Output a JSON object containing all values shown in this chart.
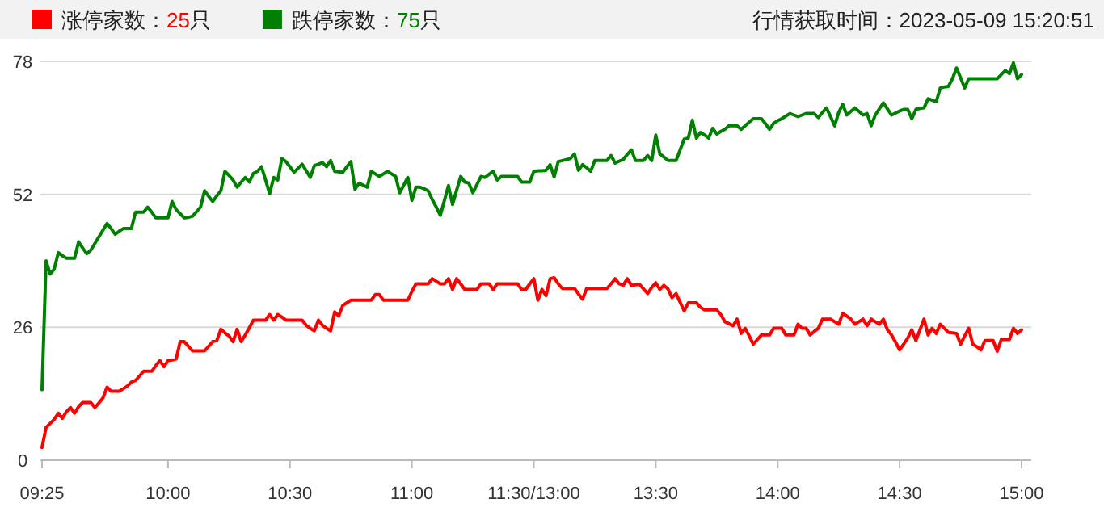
{
  "chart_data": {
    "type": "line",
    "legend": "top left",
    "grid": "y",
    "annotations": [
      "行情获取时间：2023-05-09 15:20:51"
    ],
    "ylim": [
      0,
      78
    ],
    "yticks": [
      0,
      26,
      52,
      78
    ],
    "categories": [
      "09:25",
      null,
      null,
      null,
      null,
      null,
      null,
      null,
      null,
      null,
      null,
      null,
      null,
      null,
      null,
      null,
      null,
      null,
      null,
      null,
      null,
      null,
      null,
      null,
      null,
      null,
      null,
      null,
      null,
      null,
      null,
      "10:00",
      null,
      null,
      null,
      null,
      null,
      null,
      null,
      null,
      null,
      null,
      null,
      null,
      null,
      null,
      null,
      null,
      null,
      null,
      null,
      null,
      null,
      null,
      null,
      null,
      null,
      null,
      null,
      null,
      null,
      "10:30",
      null,
      null,
      null,
      null,
      null,
      null,
      null,
      null,
      null,
      null,
      null,
      null,
      null,
      null,
      null,
      null,
      null,
      null,
      null,
      null,
      null,
      null,
      null,
      null,
      null,
      null,
      null,
      null,
      null,
      "11:00",
      null,
      null,
      null,
      null,
      null,
      null,
      null,
      null,
      null,
      null,
      null,
      null,
      null,
      null,
      null,
      null,
      null,
      null,
      null,
      null,
      null,
      null,
      null,
      null,
      null,
      null,
      null,
      null,
      null,
      "11:30/13:00",
      null,
      null,
      null,
      null,
      null,
      null,
      null,
      null,
      null,
      null,
      null,
      null,
      null,
      null,
      null,
      null,
      null,
      null,
      null,
      null,
      null,
      null,
      null,
      null,
      null,
      null,
      null,
      null,
      null,
      "13:30",
      null,
      null,
      null,
      null,
      null,
      null,
      null,
      null,
      null,
      null,
      null,
      null,
      null,
      null,
      null,
      null,
      null,
      null,
      null,
      null,
      null,
      null,
      null,
      null,
      null,
      null,
      null,
      null,
      null,
      "14:00",
      null,
      null,
      null,
      null,
      null,
      null,
      null,
      null,
      null,
      null,
      null,
      null,
      null,
      null,
      null,
      null,
      null,
      null,
      null,
      null,
      null,
      null,
      null,
      null,
      null,
      null,
      null,
      null,
      null,
      "14:30",
      null,
      null,
      null,
      null,
      null,
      null,
      null,
      null,
      null,
      null,
      null,
      null,
      null,
      null,
      null,
      null,
      null,
      null,
      null,
      null,
      null,
      null,
      null,
      null,
      null,
      null,
      null,
      null,
      null,
      "15:00"
    ],
    "series": [
      {
        "name": "涨停家数：25只",
        "color": "#ff0000",
        "values": [
          2.5,
          6.4,
          7.2,
          8,
          9.2,
          8.2,
          9.5,
          10.3,
          9.2,
          10.5,
          11.3,
          11.3,
          11.3,
          10.3,
          11.2,
          12.2,
          14.3,
          13.5,
          13.5,
          13.5,
          14,
          14.5,
          15.3,
          15.6,
          16.5,
          17.4,
          17.4,
          17.4,
          18.5,
          19.5,
          18.3,
          19.5,
          19.6,
          19.8,
          23.2,
          23.2,
          22.3,
          21.4,
          21.4,
          21.4,
          21.4,
          22.3,
          23.2,
          23.4,
          25.6,
          24.9,
          24.3,
          23.2,
          25.6,
          23.2,
          24.5,
          25.9,
          27.4,
          27.4,
          27.4,
          27.4,
          28.5,
          27.4,
          28.5,
          28,
          27.4,
          27.4,
          27.4,
          27.4,
          27.4,
          26.4,
          25.8,
          25.3,
          27.4,
          26.4,
          25.8,
          25.3,
          29,
          28.2,
          30.3,
          30.8,
          31.3,
          31.3,
          31.3,
          31.3,
          31.3,
          31.3,
          32.4,
          32.4,
          31.3,
          31.3,
          31.3,
          31.3,
          31.3,
          31.3,
          31.3,
          33,
          34.5,
          34.5,
          34.5,
          34.5,
          35.5,
          35,
          34.5,
          34.5,
          35.5,
          33.4,
          35.5,
          34.5,
          33.4,
          33.4,
          33.4,
          33.4,
          34.5,
          34.5,
          34.5,
          33.4,
          34.5,
          34.5,
          34.5,
          34.5,
          34.5,
          34.5,
          33.4,
          33.4,
          34.5,
          35.5,
          31.3,
          33.4,
          32.2,
          35.5,
          35.7,
          34.5,
          33.6,
          33.6,
          33.6,
          33.6,
          32.5,
          31.5,
          33.6,
          33.6,
          33.6,
          33.6,
          33.6,
          33.6,
          34.5,
          35.5,
          34.5,
          34.2,
          35.5,
          34.2,
          34.3,
          34.4,
          33.5,
          32.6,
          33.8,
          34.7,
          33.4,
          34.2,
          33.5,
          31.8,
          32.6,
          30.9,
          29.2,
          30.8,
          30.8,
          30.8,
          29.9,
          29.4,
          29.4,
          29.4,
          29.4,
          28.5,
          27.1,
          26.7,
          26.3,
          27.6,
          24.8,
          25.8,
          24.3,
          22.7,
          23.6,
          24.5,
          24.5,
          24.5,
          25.8,
          25.8,
          25.8,
          24.5,
          24.5,
          24.5,
          26.6,
          25.8,
          25.8,
          24.5,
          25.2,
          25.8,
          27.6,
          27.6,
          27.6,
          27.1,
          26.6,
          28.7,
          28.2,
          27.6,
          26.6,
          27.1,
          27.6,
          26.3,
          27.6,
          27.1,
          26.6,
          27.6,
          25.5,
          24.5,
          23.1,
          21.6,
          22.7,
          23.9,
          25.5,
          23.4,
          25.5,
          27.6,
          24.5,
          25.8,
          24.8,
          26.6,
          25.8,
          25,
          24.9,
          24.8,
          22.7,
          24.3,
          25.8,
          22.7,
          22.2,
          21.6,
          23.4,
          23.4,
          23.4,
          21.3,
          23.6,
          23.6,
          23.6,
          25.8,
          24.8,
          25.5
        ]
      },
      {
        "name": "跌停家数：75只",
        "color": "#008000",
        "values": [
          13.8,
          39,
          36.4,
          37.4,
          40.6,
          40,
          39.5,
          39.5,
          39.5,
          42.7,
          41.5,
          40.4,
          41.1,
          42.4,
          43.7,
          45,
          46.3,
          45.3,
          44.2,
          44.8,
          45.3,
          45.3,
          45.3,
          48.5,
          48.5,
          48.5,
          49.5,
          48.5,
          47.4,
          47.4,
          47.4,
          47.4,
          50.6,
          49,
          48.2,
          47.4,
          47.5,
          47.7,
          48.6,
          49.5,
          52.7,
          51.6,
          50.6,
          51.7,
          52.7,
          56.5,
          55.7,
          54.8,
          53.4,
          54.4,
          55.3,
          54.4,
          56.1,
          56.5,
          57.4,
          54.8,
          52.1,
          55.3,
          54.8,
          59,
          58.4,
          57.4,
          56.3,
          57.1,
          57.9,
          56.6,
          55.3,
          57.6,
          57.9,
          58.2,
          57.4,
          58.6,
          56.5,
          56.4,
          56.3,
          57.4,
          58.4,
          53,
          54.2,
          53.8,
          53.4,
          56.5,
          56,
          55.5,
          56,
          56.5,
          56,
          55.5,
          52.3,
          53.8,
          55.3,
          50.8,
          53.4,
          53.4,
          53.1,
          52.7,
          51,
          49.5,
          47.9,
          50.8,
          53.7,
          50,
          52.8,
          55.5,
          54.4,
          54.2,
          52.3,
          53.9,
          55.5,
          55.3,
          55.9,
          56.5,
          54.8,
          55.5,
          55.5,
          55.5,
          55.5,
          55.5,
          54.4,
          54.4,
          54.4,
          56.5,
          56.6,
          56.6,
          56.7,
          57.8,
          55.4,
          58.4,
          58.6,
          58.8,
          59,
          59.9,
          56.7,
          57.8,
          57.2,
          56.5,
          58.6,
          58.6,
          58.6,
          58.6,
          59.6,
          58.1,
          58.5,
          58.8,
          59.8,
          60.7,
          58.6,
          58.6,
          58.6,
          59.6,
          58.6,
          63.6,
          59.9,
          59.3,
          58.6,
          58.6,
          58.6,
          60.7,
          62.8,
          63,
          66.5,
          63,
          64.1,
          63.6,
          63,
          64.9,
          63.8,
          64.3,
          64.7,
          65.4,
          65.4,
          65.4,
          64.7,
          65.4,
          66.1,
          66.8,
          66.8,
          66.8,
          65.8,
          64.7,
          65.9,
          66.4,
          66.8,
          67.3,
          67.8,
          67.5,
          67.2,
          67.5,
          67.8,
          67.8,
          67.8,
          67,
          68,
          68.9,
          67.2,
          65.4,
          68,
          69.6,
          67.5,
          68.2,
          68.9,
          68.2,
          67.5,
          67.8,
          65.4,
          67.5,
          68.7,
          69.9,
          68.7,
          67.5,
          67.9,
          68.3,
          68.6,
          68.6,
          66.8,
          68.6,
          68.8,
          68.9,
          70.7,
          70.4,
          70.1,
          72.8,
          73,
          73.1,
          74.6,
          76.7,
          74.8,
          72.8,
          74.6,
          74.6,
          74.6,
          74.6,
          74.6,
          74.6,
          74.6,
          74.6,
          75.4,
          76.2,
          75.6,
          77.7,
          74.6,
          75.4
        ]
      }
    ]
  }
}
